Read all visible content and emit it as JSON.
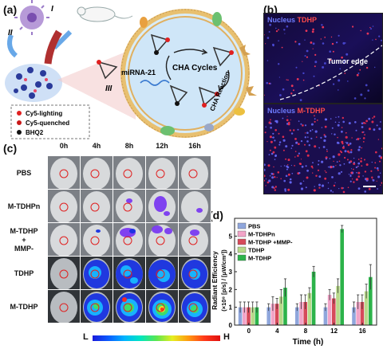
{
  "panels": {
    "a": "(a)",
    "b": "(b)",
    "c": "(c)",
    "d": "(d)"
  },
  "schematic": {
    "roman": [
      "I",
      "II",
      "III"
    ],
    "mirna": "miRNA-21",
    "cha_cycles": "CHA Cycles",
    "cha_reaction": "CHA Reaction",
    "legend": [
      {
        "label": "Cy5-lighting",
        "color": "#e02020"
      },
      {
        "label": "Cy5-quenched",
        "color": "#c81818"
      },
      {
        "label": "BHQ2",
        "color": "#111111"
      }
    ]
  },
  "fluorescence": [
    {
      "nucleus": "Nucleus",
      "probe": "TDHP",
      "note": "Tumor edge"
    },
    {
      "nucleus": "Nucleus",
      "probe": "M-TDHP",
      "note": ""
    }
  ],
  "imaging": {
    "columns": [
      "0h",
      "4h",
      "8h",
      "12h",
      "16h"
    ],
    "rows": [
      {
        "lines": [
          "PBS"
        ]
      },
      {
        "lines": [
          "M-TDHPn"
        ]
      },
      {
        "lines": [
          "M-TDHP",
          "+",
          "MMP-"
        ]
      },
      {
        "lines": [
          "TDHP"
        ]
      },
      {
        "lines": [
          "M-TDHP"
        ]
      }
    ],
    "colorbar": {
      "low": "L",
      "high": "H"
    }
  },
  "chart_data": {
    "type": "bar",
    "categories": [
      "0",
      "4",
      "8",
      "12",
      "16"
    ],
    "xlabel": "Time (h)",
    "ylabel": [
      "Radiant Efficiency",
      "(×10⁸ [p/s] / [μW/cm²])"
    ],
    "ylim": [
      0,
      6
    ],
    "yticks": [
      0,
      1,
      2,
      3,
      4,
      5
    ],
    "legend_position": "top-left",
    "series": [
      {
        "name": "PBS",
        "color": "#8fa6dc",
        "values": [
          1.0,
          1.0,
          1.0,
          1.0,
          1.0
        ],
        "errors": [
          0.3,
          0.2,
          0.2,
          0.2,
          0.3
        ]
      },
      {
        "name": "M-TDHPn",
        "color": "#f2a4c8",
        "values": [
          1.0,
          1.2,
          1.3,
          1.7,
          1.3
        ],
        "errors": [
          0.3,
          0.4,
          0.4,
          0.3,
          0.4
        ]
      },
      {
        "name": "M-TDHP +MMP-",
        "color": "#d64a5a",
        "values": [
          1.0,
          1.2,
          1.3,
          1.5,
          1.3
        ],
        "errors": [
          0.3,
          0.3,
          0.4,
          0.3,
          0.4
        ]
      },
      {
        "name": "TDHP",
        "color": "#b8d98a",
        "values": [
          1.0,
          1.6,
          1.8,
          2.2,
          1.9
        ],
        "errors": [
          0.3,
          0.4,
          0.3,
          0.4,
          0.4
        ]
      },
      {
        "name": "M-TDHP",
        "color": "#2cb34a",
        "values": [
          1.0,
          2.1,
          3.0,
          5.4,
          2.7
        ],
        "errors": [
          0.3,
          0.5,
          0.3,
          0.2,
          0.7
        ]
      }
    ]
  }
}
